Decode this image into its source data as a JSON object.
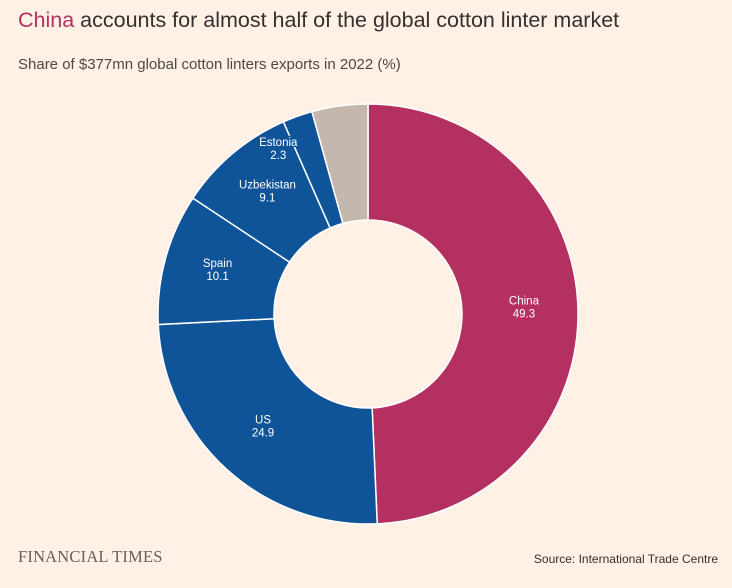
{
  "header": {
    "title_highlight": "China",
    "title_rest": " accounts for almost half of the global cotton linter market",
    "subtitle": "Share of $377mn global cotton linters exports in 2022 (%)"
  },
  "footer": {
    "brand": "FINANCIAL TIMES",
    "source": "Source: International Trade Centre"
  },
  "colors": {
    "highlight": "#b33060",
    "blue": "#0f5499",
    "other": "#c4b8ae",
    "background": "#fff1e5"
  },
  "chart_data": {
    "type": "pie",
    "donut": true,
    "title": "China accounts for almost half of the global cotton linter market",
    "subtitle": "Share of $377mn global cotton linters exports in 2022 (%)",
    "slices": [
      {
        "label": "China",
        "value": 49.3,
        "color": "#b33060"
      },
      {
        "label": "US",
        "value": 24.9,
        "color": "#0f5499"
      },
      {
        "label": "Spain",
        "value": 10.1,
        "color": "#0f5499"
      },
      {
        "label": "Uzbekistan",
        "value": 9.1,
        "color": "#0f5499"
      },
      {
        "label": "Estonia",
        "value": 2.3,
        "color": "#0f5499"
      },
      {
        "label": "",
        "value": 4.3,
        "color": "#c4b8ae"
      }
    ]
  }
}
